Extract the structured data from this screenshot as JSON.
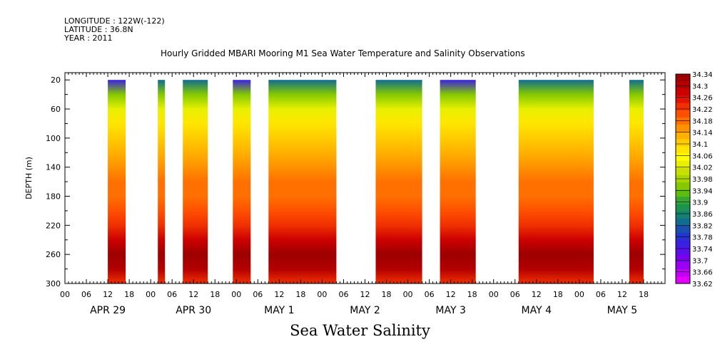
{
  "meta": {
    "longitude": "LONGITUDE : 122W(-122)",
    "latitude": "LATITUDE : 36.8N",
    "year": "YEAR : 2011"
  },
  "title": "Hourly Gridded MBARI Mooring M1 Sea Water Temperature and Salinity Observations",
  "bottom_title": "Sea Water Salinity",
  "chart_data": {
    "type": "heatmap",
    "title": "Hourly Gridded MBARI Mooring M1 Sea Water Temperature and Salinity Observations",
    "xlabel": "",
    "ylabel": "DEPTH (m)",
    "variable": "Sea Water Salinity",
    "x_range_hours": [
      0,
      168
    ],
    "x_hour_ticks": [
      "00",
      "06",
      "12",
      "18",
      "00",
      "06",
      "12",
      "18",
      "00",
      "06",
      "12",
      "18",
      "00",
      "06",
      "12",
      "18",
      "00",
      "06",
      "12",
      "18",
      "00",
      "06",
      "12",
      "18",
      "00",
      "06",
      "12",
      "18"
    ],
    "x_day_labels": [
      "APR 29",
      "APR 30",
      "MAY  1",
      "MAY  2",
      "MAY  3",
      "MAY  4",
      "MAY  5"
    ],
    "ylim": [
      300,
      10
    ],
    "y_ticks": [
      20,
      60,
      100,
      140,
      180,
      220,
      260,
      300
    ],
    "depth_profile": {
      "depths": [
        20,
        40,
        60,
        80,
        100,
        120,
        140,
        160,
        180,
        200,
        220,
        240,
        260,
        280,
        300
      ],
      "salinity": [
        33.86,
        33.96,
        34.03,
        34.08,
        34.1,
        34.12,
        34.16,
        34.18,
        34.18,
        34.2,
        34.24,
        34.28,
        34.32,
        34.3,
        34.24
      ]
    },
    "data_segments_hours": [
      [
        12,
        17
      ],
      [
        26,
        28
      ],
      [
        33,
        40
      ],
      [
        47,
        52
      ],
      [
        57,
        76
      ],
      [
        87,
        100
      ],
      [
        105,
        115
      ],
      [
        127,
        148
      ],
      [
        158,
        162
      ]
    ],
    "colorbar": {
      "min": 33.62,
      "max": 34.34,
      "labels": [
        "34.34",
        "34.3",
        "34.26",
        "34.22",
        "34.18",
        "34.14",
        "34.1",
        "34.06",
        "34.02",
        "33.98",
        "33.94",
        "33.9",
        "33.86",
        "33.82",
        "33.78",
        "33.74",
        "33.7",
        "33.66",
        "33.62"
      ],
      "colors": [
        "#9c0000",
        "#b40000",
        "#cc0000",
        "#e01400",
        "#f03000",
        "#ff5000",
        "#ff7000",
        "#ff9200",
        "#ffb000",
        "#ffcc00",
        "#ffe600",
        "#ffff00",
        "#e8f000",
        "#c8e000",
        "#a8d400",
        "#84c800",
        "#5cbc10",
        "#34a830",
        "#1c9450",
        "#148070",
        "#106c90",
        "#1850b0",
        "#2434d0",
        "#3a20e0",
        "#5a10ea",
        "#7a00f0",
        "#9a00f4",
        "#c000f8",
        "#e000fc"
      ]
    }
  }
}
